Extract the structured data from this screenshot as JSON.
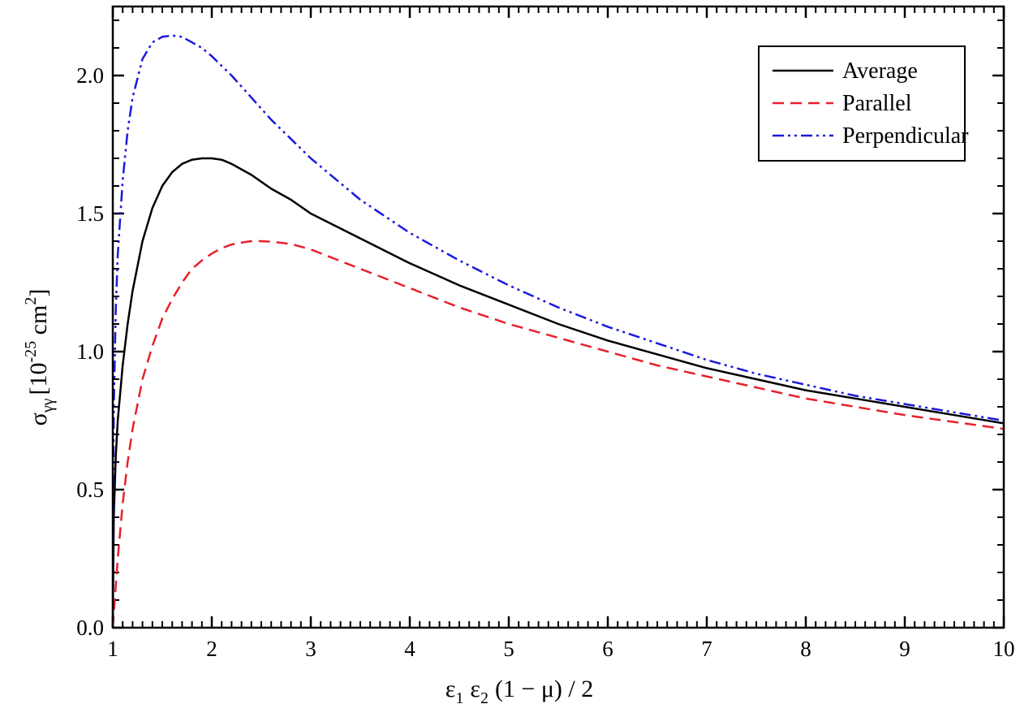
{
  "chart_data": {
    "type": "line",
    "title": "",
    "xlabel": {
      "eps": "ε",
      "sub1": "1",
      "sub2": "2",
      "rest": "(1 − μ) / 2"
    },
    "ylabel": {
      "sigma": "σ",
      "sub": "γγ",
      "open": "[10",
      "exp": "-25",
      "unit": " cm",
      "unit_exp": "2",
      "close": "]"
    },
    "xlim": [
      1,
      10
    ],
    "ylim": [
      0,
      2.25
    ],
    "x_ticks": [
      1,
      2,
      3,
      4,
      5,
      6,
      7,
      8,
      9,
      10
    ],
    "x_tick_labels": [
      "1",
      "2",
      "3",
      "4",
      "5",
      "6",
      "7",
      "8",
      "9",
      "10"
    ],
    "y_ticks": [
      0,
      0.5,
      1.0,
      1.5,
      2.0
    ],
    "y_tick_labels": [
      "0.0",
      "0.5",
      "1.0",
      "1.5",
      "2.0"
    ],
    "x_minor_step": 0.1,
    "y_minor_step": 0.1,
    "grid": false,
    "legend_position": "top-right",
    "series": [
      {
        "name": "Average",
        "color": "#000000",
        "dash": "solid",
        "x": [
          1.0,
          1.01,
          1.03,
          1.05,
          1.1,
          1.15,
          1.2,
          1.3,
          1.4,
          1.5,
          1.6,
          1.7,
          1.8,
          1.9,
          2.0,
          2.1,
          2.2,
          2.4,
          2.6,
          2.8,
          3.0,
          3.5,
          4.0,
          4.5,
          5.0,
          5.5,
          6.0,
          6.5,
          7.0,
          7.5,
          8.0,
          8.5,
          9.0,
          9.5,
          10.0
        ],
        "y": [
          0.0,
          0.4,
          0.62,
          0.75,
          0.95,
          1.1,
          1.22,
          1.4,
          1.52,
          1.6,
          1.65,
          1.68,
          1.695,
          1.7,
          1.7,
          1.695,
          1.68,
          1.64,
          1.59,
          1.55,
          1.5,
          1.41,
          1.32,
          1.24,
          1.17,
          1.1,
          1.04,
          0.99,
          0.94,
          0.9,
          0.86,
          0.83,
          0.8,
          0.77,
          0.74
        ]
      },
      {
        "name": "Parallel",
        "color": "#e8202a",
        "dash": "dashed",
        "x": [
          1.0,
          1.02,
          1.05,
          1.1,
          1.15,
          1.2,
          1.3,
          1.4,
          1.5,
          1.6,
          1.7,
          1.8,
          1.9,
          2.0,
          2.1,
          2.2,
          2.3,
          2.4,
          2.5,
          2.6,
          2.8,
          3.0,
          3.5,
          4.0,
          4.5,
          5.0,
          5.5,
          6.0,
          6.5,
          7.0,
          7.5,
          8.0,
          8.5,
          9.0,
          9.5,
          10.0
        ],
        "y": [
          0.0,
          0.1,
          0.25,
          0.45,
          0.6,
          0.72,
          0.9,
          1.02,
          1.12,
          1.19,
          1.25,
          1.3,
          1.33,
          1.355,
          1.375,
          1.388,
          1.395,
          1.4,
          1.4,
          1.398,
          1.39,
          1.37,
          1.3,
          1.23,
          1.16,
          1.1,
          1.05,
          1.0,
          0.95,
          0.91,
          0.87,
          0.83,
          0.8,
          0.77,
          0.745,
          0.72
        ]
      },
      {
        "name": "Perpendicular",
        "color": "#1a1add",
        "dash": "dash-dot-dot",
        "x": [
          1.0,
          1.005,
          1.01,
          1.03,
          1.05,
          1.1,
          1.15,
          1.2,
          1.3,
          1.4,
          1.5,
          1.6,
          1.7,
          1.8,
          1.9,
          2.0,
          2.2,
          2.4,
          2.6,
          2.8,
          3.0,
          3.5,
          4.0,
          4.5,
          5.0,
          5.5,
          6.0,
          6.5,
          7.0,
          7.5,
          8.0,
          8.5,
          9.0,
          9.5,
          10.0
        ],
        "y": [
          0.0,
          0.5,
          0.8,
          1.15,
          1.35,
          1.62,
          1.8,
          1.92,
          2.06,
          2.12,
          2.14,
          2.145,
          2.14,
          2.12,
          2.1,
          2.07,
          2.0,
          1.92,
          1.84,
          1.77,
          1.7,
          1.55,
          1.43,
          1.33,
          1.24,
          1.16,
          1.09,
          1.03,
          0.97,
          0.92,
          0.88,
          0.84,
          0.81,
          0.78,
          0.75
        ]
      }
    ]
  }
}
